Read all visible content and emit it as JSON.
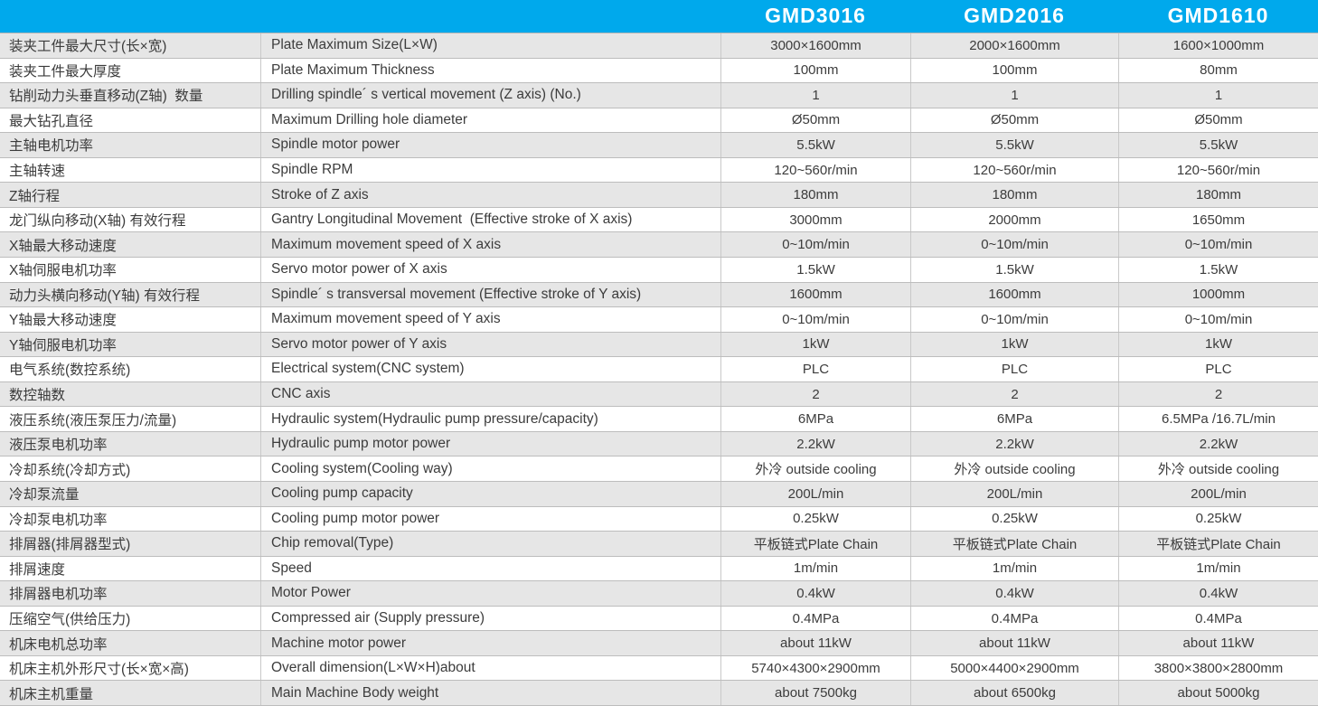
{
  "header": {
    "columns": [
      "GMD3016",
      "GMD2016",
      "GMD1610"
    ]
  },
  "colors": {
    "header_bg": "#00a9ec",
    "header_text": "#ffffff",
    "alt_row_bg": "#e6e6e6",
    "row_bg": "#ffffff",
    "text": "#3c3c3c",
    "h_border": "#bdbdbd",
    "v_border": "#c9c9c9"
  },
  "table": {
    "rows": [
      {
        "cn": "装夹工件最大尺寸(长×宽)",
        "en": "Plate Maximum Size(L×W)",
        "v1": "3000×1600mm",
        "v2": "2000×1600mm",
        "v3": "1600×1000mm"
      },
      {
        "cn": "装夹工件最大厚度",
        "en": "Plate Maximum Thickness",
        "v1": "100mm",
        "v2": "100mm",
        "v3": "80mm"
      },
      {
        "cn": "钻削动力头垂直移动(Z轴)  数量",
        "en": "Drilling spindle´ s vertical movement (Z axis) (No.)",
        "v1": "1",
        "v2": "1",
        "v3": "1"
      },
      {
        "cn": "最大钻孔直径",
        "en": "Maximum Drilling hole diameter",
        "v1": "Ø50mm",
        "v2": "Ø50mm",
        "v3": "Ø50mm"
      },
      {
        "cn": "主轴电机功率",
        "en": "Spindle motor power",
        "v1": "5.5kW",
        "v2": "5.5kW",
        "v3": "5.5kW"
      },
      {
        "cn": "主轴转速",
        "en": "Spindle RPM",
        "v1": "120~560r/min",
        "v2": "120~560r/min",
        "v3": "120~560r/min"
      },
      {
        "cn": "Z轴行程",
        "en": "Stroke of Z axis",
        "v1": "180mm",
        "v2": "180mm",
        "v3": "180mm"
      },
      {
        "cn": "龙门纵向移动(X轴) 有效行程",
        "en": "Gantry Longitudinal Movement  (Effective stroke of X axis)",
        "v1": "3000mm",
        "v2": "2000mm",
        "v3": "1650mm"
      },
      {
        "cn": "X轴最大移动速度",
        "en": "Maximum movement speed of X axis",
        "v1": "0~10m/min",
        "v2": "0~10m/min",
        "v3": "0~10m/min"
      },
      {
        "cn": "X轴伺服电机功率",
        "en": "Servo motor power of X axis",
        "v1": "1.5kW",
        "v2": "1.5kW",
        "v3": "1.5kW"
      },
      {
        "cn": "动力头横向移动(Y轴) 有效行程",
        "en": "Spindle´ s transversal movement (Effective stroke of Y axis)",
        "v1": "1600mm",
        "v2": "1600mm",
        "v3": "1000mm"
      },
      {
        "cn": "Y轴最大移动速度",
        "en": "Maximum movement speed of Y axis",
        "v1": "0~10m/min",
        "v2": "0~10m/min",
        "v3": "0~10m/min"
      },
      {
        "cn": "Y轴伺服电机功率",
        "en": "Servo motor power of Y axis",
        "v1": "1kW",
        "v2": "1kW",
        "v3": "1kW"
      },
      {
        "cn": "电气系统(数控系统)",
        "en": "Electrical system(CNC system)",
        "v1": "PLC",
        "v2": "PLC",
        "v3": "PLC"
      },
      {
        "cn": "数控轴数",
        "en": "CNC axis",
        "v1": "2",
        "v2": "2",
        "v3": "2"
      },
      {
        "cn": "液压系统(液压泵压力/流量)",
        "en": "Hydraulic system(Hydraulic pump pressure/capacity)",
        "v1": "6MPa",
        "v2": "6MPa",
        "v3": "6.5MPa /16.7L/min"
      },
      {
        "cn": "液压泵电机功率",
        "en": "Hydraulic pump motor power",
        "v1": "2.2kW",
        "v2": "2.2kW",
        "v3": "2.2kW"
      },
      {
        "cn": "冷却系统(冷却方式)",
        "en": "Cooling system(Cooling way)",
        "v1": "外冷 outside cooling",
        "v2": "外冷 outside cooling",
        "v3": "外冷 outside cooling"
      },
      {
        "cn": "冷却泵流量",
        "en": "Cooling pump capacity",
        "v1": "200L/min",
        "v2": "200L/min",
        "v3": "200L/min"
      },
      {
        "cn": "冷却泵电机功率",
        "en": "Cooling pump motor power",
        "v1": "0.25kW",
        "v2": "0.25kW",
        "v3": "0.25kW"
      },
      {
        "cn": "排屑器(排屑器型式)",
        "en": "Chip removal(Type)",
        "v1": "平板链式Plate Chain",
        "v2": "平板链式Plate Chain",
        "v3": "平板链式Plate Chain"
      },
      {
        "cn": "排屑速度",
        "en": "Speed",
        "v1": "1m/min",
        "v2": "1m/min",
        "v3": "1m/min"
      },
      {
        "cn": "排屑器电机功率",
        "en": "Motor Power",
        "v1": "0.4kW",
        "v2": "0.4kW",
        "v3": "0.4kW"
      },
      {
        "cn": "压缩空气(供给压力)",
        "en": "Compressed air (Supply pressure)",
        "v1": "0.4MPa",
        "v2": "0.4MPa",
        "v3": "0.4MPa"
      },
      {
        "cn": "机床电机总功率",
        "en": "Machine motor power",
        "v1": "about 11kW",
        "v2": "about 11kW",
        "v3": "about 11kW"
      },
      {
        "cn": "机床主机外形尺寸(长×宽×高)",
        "en": "Overall dimension(L×W×H)about",
        "v1": "5740×4300×2900mm",
        "v2": "5000×4400×2900mm",
        "v3": "3800×3800×2800mm"
      },
      {
        "cn": "机床主机重量",
        "en": "Main Machine Body weight",
        "v1": "about 7500kg",
        "v2": "about 6500kg",
        "v3": "about 5000kg"
      }
    ]
  }
}
